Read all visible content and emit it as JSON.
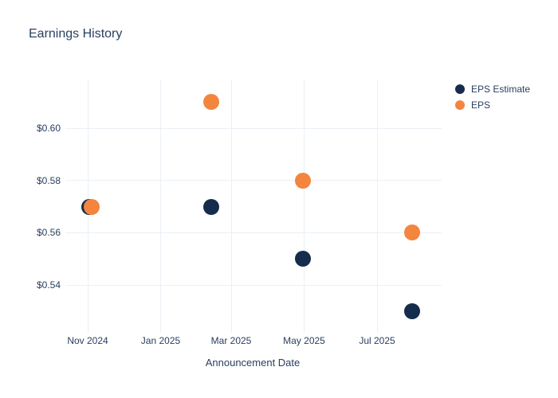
{
  "chart_data": {
    "type": "scatter",
    "title": "Earnings History",
    "xlabel": "Announcement Date",
    "ylabel": "",
    "background_color": "#ffffff",
    "grid": "on",
    "grid_color": "#ebf0f6",
    "text_color": "#2a3f5f",
    "legend_position": "right",
    "x_ticks": [
      {
        "label": "Nov 2024",
        "date": "2024-11-01"
      },
      {
        "label": "Jan 2025",
        "date": "2025-01-01"
      },
      {
        "label": "Mar 2025",
        "date": "2025-03-01"
      },
      {
        "label": "May 2025",
        "date": "2025-05-01"
      },
      {
        "label": "Jul 2025",
        "date": "2025-07-01"
      }
    ],
    "y_ticks": [
      {
        "label": "$0.54",
        "value": 0.54
      },
      {
        "label": "$0.56",
        "value": 0.56
      },
      {
        "label": "$0.58",
        "value": 0.58
      },
      {
        "label": "$0.60",
        "value": 0.6
      }
    ],
    "ylim": [
      0.523,
      0.619
    ],
    "xlim": [
      "2024-10-13",
      "2025-08-25"
    ],
    "series": [
      {
        "name": "EPS Estimate",
        "color": "#152c4d",
        "x": [
          "2024-11-02",
          "2025-02-12",
          "2025-04-30",
          "2025-07-30"
        ],
        "values": [
          0.57,
          0.57,
          0.55,
          0.53
        ]
      },
      {
        "name": "EPS",
        "color": "#f3853f",
        "x": [
          "2024-11-04",
          "2025-02-12",
          "2025-04-30",
          "2025-07-30"
        ],
        "values": [
          0.57,
          0.61,
          0.58,
          0.56
        ]
      }
    ]
  }
}
